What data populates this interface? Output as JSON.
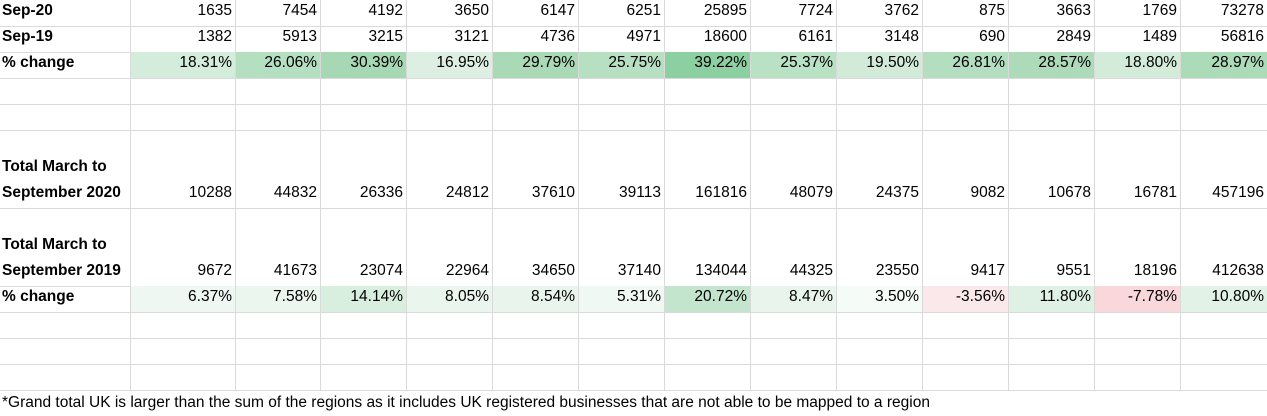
{
  "table": {
    "rows": [
      {
        "label": "Sep-20",
        "cells": [
          1635,
          7454,
          4192,
          3650,
          6147,
          6251,
          25895,
          7724,
          3762,
          875,
          3663,
          1769,
          73278
        ]
      },
      {
        "label": "Sep-19",
        "cells": [
          1382,
          5913,
          3215,
          3121,
          4736,
          4971,
          18600,
          6161,
          3148,
          690,
          2849,
          1489,
          56816
        ]
      },
      {
        "label": "% change",
        "cells": [
          "18.31%",
          "26.06%",
          "30.39%",
          "16.95%",
          "29.79%",
          "25.75%",
          "39.22%",
          "25.37%",
          "19.50%",
          "26.81%",
          "28.57%",
          "18.80%",
          "28.97%"
        ],
        "fills": [
          "#d4ecdc",
          "#b5dfc1",
          "#a6d9b3",
          "#dcefe2",
          "#a9dab5",
          "#b7e0c3",
          "#8ccfa0",
          "#b9e1c4",
          "#d1ebd8",
          "#b3dfc0",
          "#addbb9",
          "#d3ecda",
          "#acdbb8"
        ]
      },
      {
        "label": "Total March to September 2020",
        "cells": [
          10288,
          44832,
          26336,
          24812,
          37610,
          39113,
          161816,
          48079,
          24375,
          9082,
          10678,
          16781,
          457196
        ]
      },
      {
        "label": "Total March to September 2019",
        "cells": [
          9672,
          41673,
          23074,
          22964,
          34650,
          37140,
          134044,
          44325,
          23550,
          9417,
          9551,
          18196,
          412638
        ]
      },
      {
        "label": "% change",
        "cells": [
          "6.37%",
          "7.58%",
          "14.14%",
          "8.05%",
          "8.54%",
          "5.31%",
          "20.72%",
          "8.47%",
          "3.50%",
          "-3.56%",
          "11.80%",
          "-7.78%",
          "10.80%"
        ],
        "fills": [
          "#eef7f1",
          "#ebf6ee",
          "#d8eedf",
          "#eaf5ed",
          "#e9f5ec",
          "#f0f8f3",
          "#c3e5cd",
          "#e9f5ec",
          "#f5fbf7",
          "#fbe8ea",
          "#dff1e4",
          "#f9d7db",
          "#e2f2e6"
        ]
      }
    ],
    "footnote": "*Grand total UK is larger than the sum of the regions as it includes UK registered businesses that are not able to be mapped to a region"
  }
}
